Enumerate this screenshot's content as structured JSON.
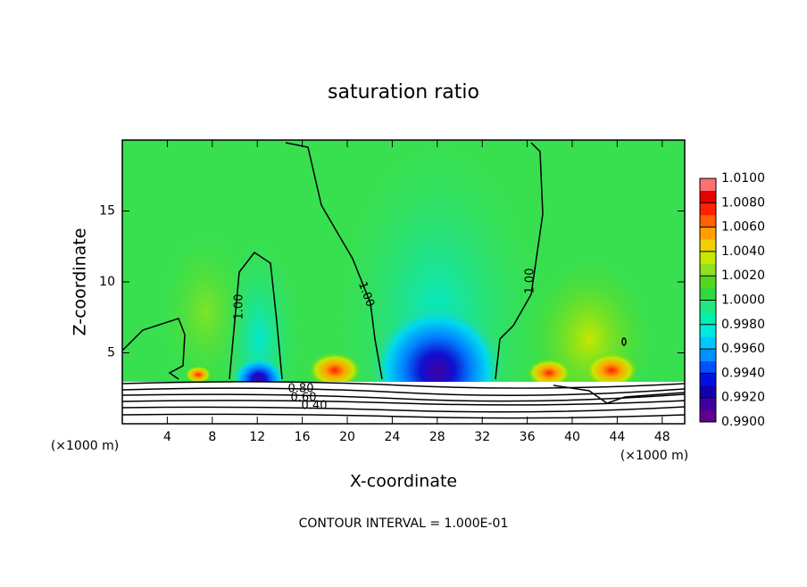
{
  "chart_data": {
    "type": "contour",
    "title": "saturation ratio",
    "x_label": "X-coordinate",
    "y_label": "Z-coordinate",
    "x_unit": "(×1000 m)",
    "y_unit": "(×1000 m)",
    "xlim": [
      0,
      50
    ],
    "xticks": [
      4,
      8,
      12,
      16,
      20,
      24,
      28,
      32,
      36,
      40,
      44,
      48
    ],
    "ylim": [
      0,
      20
    ],
    "yticks": [
      5,
      10,
      15
    ],
    "colorbar": {
      "lim": [
        0.99,
        1.01
      ],
      "ticks": [
        {
          "value": 0.99,
          "label": "0.9900"
        },
        {
          "value": 0.992,
          "label": "0.9920"
        },
        {
          "value": 0.994,
          "label": "0.9940"
        },
        {
          "value": 0.996,
          "label": "0.9960"
        },
        {
          "value": 0.998,
          "label": "0.9980"
        },
        {
          "value": 1.0,
          "label": "1.0000"
        },
        {
          "value": 1.002,
          "label": "1.0020"
        },
        {
          "value": 1.004,
          "label": "1.0040"
        },
        {
          "value": 1.006,
          "label": "1.0060"
        },
        {
          "value": 1.008,
          "label": "1.0080"
        },
        {
          "value": 1.01,
          "label": "1.0100"
        }
      ],
      "colors": [
        "#600090",
        "#4000a0",
        "#1000b0",
        "#0010e0",
        "#0050ff",
        "#0090ff",
        "#00c8ff",
        "#00e8e0",
        "#00f0b0",
        "#20e880",
        "#30d840",
        "#50d820",
        "#90e020",
        "#c8e800",
        "#f0d000",
        "#ffa000",
        "#ff6000",
        "#ff2000",
        "#e80000",
        "#ff7070"
      ]
    },
    "contour_labels": [
      {
        "value": 1,
        "label": "1.00"
      },
      {
        "value": 1,
        "label": "1.00"
      },
      {
        "value": 1,
        "label": "1.00"
      },
      {
        "value": 0.8,
        "label": "0.80"
      },
      {
        "value": 0.6,
        "label": "0.60"
      },
      {
        "value": 0.4,
        "label": "0.40"
      }
    ],
    "footnote": "CONTOUR INTERVAL = 1.000E-01"
  }
}
